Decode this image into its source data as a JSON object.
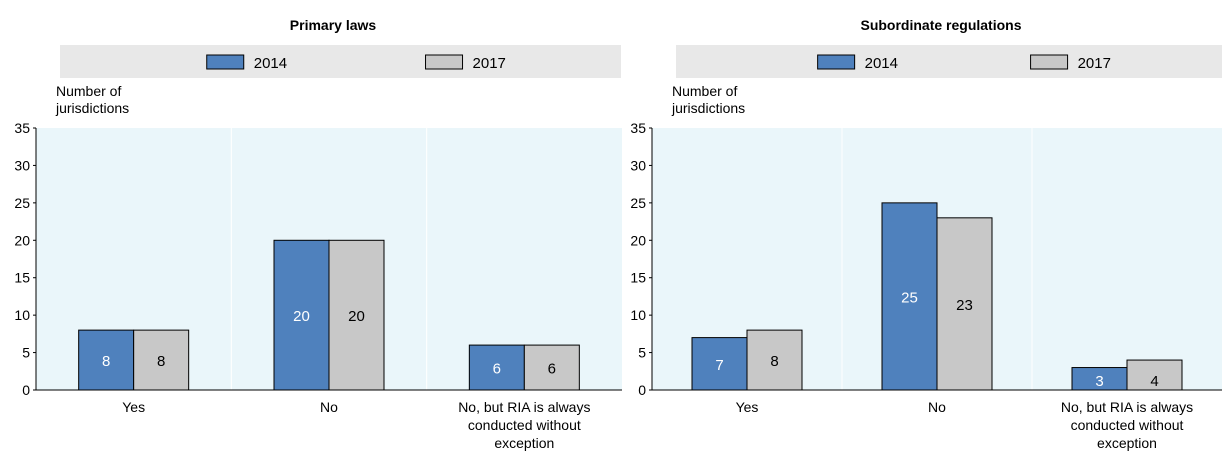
{
  "chart_data": [
    {
      "type": "bar",
      "title": "Primary laws",
      "ylabel": "Number of jurisdictions",
      "ylim": [
        0,
        35
      ],
      "yticks": [
        0,
        5,
        10,
        15,
        20,
        25,
        30,
        35
      ],
      "categories": [
        "Yes",
        "No",
        "No, but RIA is always conducted without exception"
      ],
      "series": [
        {
          "name": "2014",
          "color": "#4f81bd",
          "values": [
            8,
            20,
            6
          ]
        },
        {
          "name": "2017",
          "color": "#c8c8c8",
          "values": [
            8,
            20,
            6
          ]
        }
      ],
      "legend": "top",
      "grid": false
    },
    {
      "type": "bar",
      "title": "Subordinate regulations",
      "ylabel": "Number of jurisdictions",
      "ylim": [
        0,
        35
      ],
      "yticks": [
        0,
        5,
        10,
        15,
        20,
        25,
        30,
        35
      ],
      "categories": [
        "Yes",
        "No",
        "No, but RIA is always conducted without exception"
      ],
      "series": [
        {
          "name": "2014",
          "color": "#4f81bd",
          "values": [
            7,
            25,
            3
          ]
        },
        {
          "name": "2017",
          "color": "#c8c8c8",
          "values": [
            8,
            23,
            4
          ]
        }
      ],
      "legend": "top",
      "grid": false
    }
  ]
}
